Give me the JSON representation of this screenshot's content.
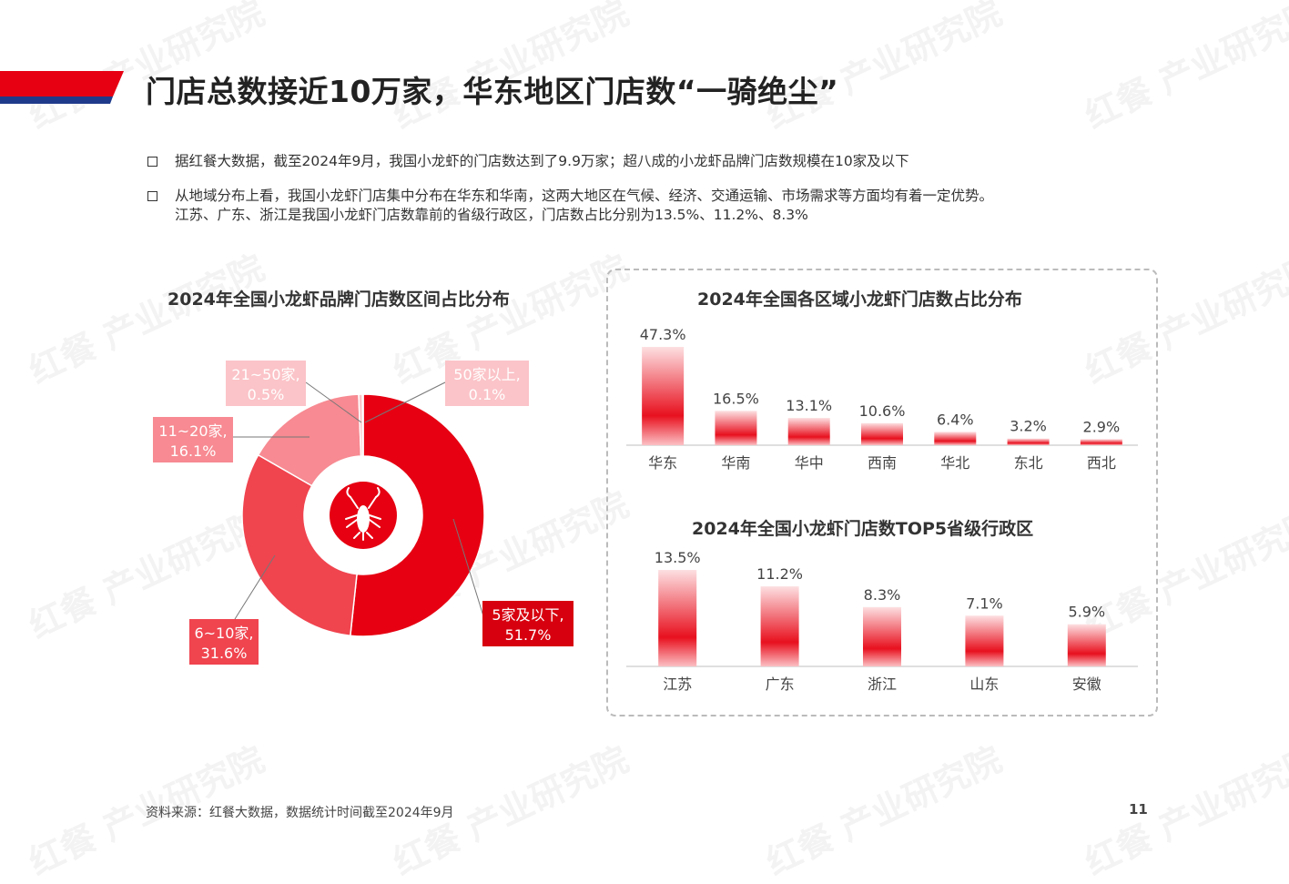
{
  "watermark": "红餐 产业研究院",
  "title": "门店总数接近10万家，华东地区门店数“一骑绝尘”",
  "bullets": [
    [
      "据红餐大数据，截至2024年9月，我国小龙虾的门店数达到了9.9万家；超八成的小龙虾品牌门店数规模在10家及以下"
    ],
    [
      "从地域分布上看，我国小龙虾门店集中分布在华东和华南，这两大地区在气候、经济、交通运输、市场需求等方面均有着一定优势。",
      "江苏、广东、浙江是我国小龙虾门店数靠前的省级行政区，门店数占比分别为13.5%、11.2%、8.3%"
    ]
  ],
  "colors": {
    "brand_red": "#e60012",
    "dark_red": "#d7000f",
    "mid_red": "#f0444f",
    "light_red": "#f78a92",
    "pale_red": "#fbc4c8",
    "navy": "#1f3a8a"
  },
  "chart_data": [
    {
      "type": "pie",
      "title": "2024年全国小龙虾品牌门店数区间占比分布",
      "center_icon": "crayfish-icon",
      "slices": [
        {
          "label": "5家及以下",
          "value": 51.7,
          "label_text": "5家及以下,",
          "value_text": "51.7%"
        },
        {
          "label": "6~10家",
          "value": 31.6,
          "label_text": "6~10家,",
          "value_text": "31.6%"
        },
        {
          "label": "11~20家",
          "value": 16.1,
          "label_text": "11~20家,",
          "value_text": "16.1%"
        },
        {
          "label": "21~50家",
          "value": 0.5,
          "label_text": "21~50家,",
          "value_text": "0.5%"
        },
        {
          "label": "50家以上",
          "value": 0.1,
          "label_text": "50家以上,",
          "value_text": "0.1%"
        }
      ]
    },
    {
      "type": "bar",
      "title": "2024年全国各区域小龙虾门店数占比分布",
      "categories": [
        "华东",
        "华南",
        "华中",
        "西南",
        "华北",
        "东北",
        "西北"
      ],
      "values": [
        47.3,
        16.5,
        13.1,
        10.6,
        6.4,
        3.2,
        2.9
      ],
      "value_labels": [
        "47.3%",
        "16.5%",
        "13.1%",
        "10.6%",
        "6.4%",
        "3.2%",
        "2.9%"
      ],
      "ylim": [
        0,
        47.3
      ]
    },
    {
      "type": "bar",
      "title": "2024年全国小龙虾门店数TOP5省级行政区",
      "categories": [
        "江苏",
        "广东",
        "浙江",
        "山东",
        "安徽"
      ],
      "values": [
        13.5,
        11.2,
        8.3,
        7.1,
        5.9
      ],
      "value_labels": [
        "13.5%",
        "11.2%",
        "8.3%",
        "7.1%",
        "5.9%"
      ],
      "ylim": [
        0,
        13.5
      ]
    }
  ],
  "footer": "资料来源：红餐大数据，数据统计时间截至2024年9月",
  "page_number": "11"
}
